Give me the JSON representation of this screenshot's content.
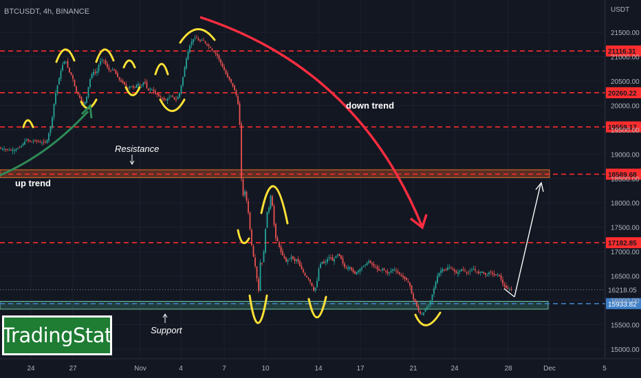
{
  "header": {
    "symbol": "BTCUSDT, 4h, BINANCE",
    "currency": "USDT"
  },
  "logo": {
    "text": "TradingStat"
  },
  "chart_data": {
    "type": "candlestick",
    "y_axis": {
      "min": 15000,
      "max": 21700,
      "ticks": [
        15000,
        15500,
        16000,
        16500,
        17000,
        17500,
        18000,
        18500,
        19000,
        19500,
        20000,
        20500,
        21000,
        21500
      ],
      "tick_labels": [
        "15000.00",
        "15500.00",
        "16000.00",
        "16500.00",
        "17000.00",
        "17500.00",
        "18000.00",
        "18500.00",
        "19000.00",
        "19500.00",
        "20000.00",
        "20500.00",
        "21000.00",
        "21500.00"
      ]
    },
    "x_axis": {
      "labels": [
        "24",
        "27",
        "Nov",
        "4",
        "7",
        "10",
        "14",
        "17",
        "21",
        "24",
        "28",
        "Dec",
        "5"
      ]
    },
    "horizontal_levels": [
      {
        "price": 21116.31,
        "label": "21116.31",
        "color": "#ff2d2d"
      },
      {
        "price": 20260.22,
        "label": "20260.22",
        "color": "#ff2d2d"
      },
      {
        "price": 19559.17,
        "label": "19559.17",
        "color": "#ff2d2d"
      },
      {
        "price": 18589.68,
        "label": "18589.68",
        "color": "#ff2d2d"
      },
      {
        "price": 17182.85,
        "label": "17182.85",
        "color": "#ff2d2d"
      },
      {
        "price": 15933.82,
        "label": "15933.82",
        "color": "#3f80c8"
      }
    ],
    "last_price": {
      "price": 16218.05,
      "label": "16218.05"
    },
    "zones": [
      {
        "name": "resistance",
        "top": 18680,
        "bottom": 18520,
        "fill": "rgba(224,90,40,0.35)",
        "stroke": "#e0702a"
      },
      {
        "name": "support",
        "top": 15980,
        "bottom": 15820,
        "fill": "rgba(80,170,140,0.25)",
        "stroke": "#6fc3a8"
      }
    ],
    "annotations": {
      "up_trend": "up trend",
      "down_trend": "down trend",
      "resistance": "Resistance",
      "support": "Support"
    },
    "close_path": [
      [
        0,
        19120
      ],
      [
        8,
        19100
      ],
      [
        15,
        19080
      ],
      [
        22,
        19090
      ],
      [
        30,
        19150
      ],
      [
        38,
        19300
      ],
      [
        45,
        19250
      ],
      [
        52,
        19280
      ],
      [
        60,
        19230
      ],
      [
        68,
        19260
      ],
      [
        75,
        19650
      ],
      [
        80,
        20200
      ],
      [
        85,
        20500
      ],
      [
        90,
        20800
      ],
      [
        95,
        20950
      ],
      [
        100,
        20700
      ],
      [
        105,
        20600
      ],
      [
        110,
        20300
      ],
      [
        115,
        20200
      ],
      [
        120,
        20000
      ],
      [
        125,
        20100
      ],
      [
        130,
        20500
      ],
      [
        135,
        20700
      ],
      [
        140,
        20650
      ],
      [
        145,
        20900
      ],
      [
        150,
        20950
      ],
      [
        155,
        20800
      ],
      [
        160,
        20700
      ],
      [
        165,
        20750
      ],
      [
        170,
        20600
      ],
      [
        175,
        20500
      ],
      [
        180,
        20450
      ],
      [
        185,
        20350
      ],
      [
        190,
        20400
      ],
      [
        195,
        20350
      ],
      [
        200,
        20450
      ],
      [
        205,
        20400
      ],
      [
        210,
        20500
      ],
      [
        215,
        20300
      ],
      [
        220,
        20350
      ],
      [
        225,
        20250
      ],
      [
        230,
        20200
      ],
      [
        235,
        20150
      ],
      [
        240,
        20100
      ],
      [
        245,
        20150
      ],
      [
        250,
        20200
      ],
      [
        255,
        20100
      ],
      [
        260,
        20200
      ],
      [
        265,
        20500
      ],
      [
        270,
        20900
      ],
      [
        275,
        21200
      ],
      [
        280,
        21350
      ],
      [
        285,
        21400
      ],
      [
        290,
        21300
      ],
      [
        295,
        21350
      ],
      [
        300,
        21250
      ],
      [
        305,
        21200
      ],
      [
        310,
        21100
      ],
      [
        315,
        21050
      ],
      [
        320,
        20900
      ],
      [
        325,
        20750
      ],
      [
        330,
        20600
      ],
      [
        335,
        20500
      ],
      [
        340,
        20350
      ],
      [
        345,
        20150
      ],
      [
        348,
        19800
      ],
      [
        350,
        19000
      ],
      [
        352,
        18000
      ],
      [
        355,
        18300
      ],
      [
        358,
        18100
      ],
      [
        361,
        17800
      ],
      [
        364,
        17400
      ],
      [
        367,
        17000
      ],
      [
        370,
        16800
      ],
      [
        373,
        16500
      ],
      [
        376,
        16200
      ],
      [
        379,
        16900
      ],
      [
        382,
        16700
      ],
      [
        385,
        17300
      ],
      [
        388,
        17800
      ],
      [
        391,
        17900
      ],
      [
        394,
        18200
      ],
      [
        397,
        17800
      ],
      [
        400,
        17300
      ],
      [
        404,
        17200
      ],
      [
        408,
        17000
      ],
      [
        412,
        16900
      ],
      [
        416,
        16800
      ],
      [
        420,
        16850
      ],
      [
        424,
        16900
      ],
      [
        428,
        16800
      ],
      [
        432,
        16850
      ],
      [
        436,
        16700
      ],
      [
        440,
        16600
      ],
      [
        444,
        16500
      ],
      [
        448,
        16450
      ],
      [
        452,
        16350
      ],
      [
        456,
        16200
      ],
      [
        460,
        16300
      ],
      [
        464,
        16700
      ],
      [
        468,
        16800
      ],
      [
        472,
        16750
      ],
      [
        476,
        16850
      ],
      [
        480,
        16900
      ],
      [
        484,
        16800
      ],
      [
        488,
        16900
      ],
      [
        492,
        16950
      ],
      [
        496,
        16850
      ],
      [
        500,
        16700
      ],
      [
        504,
        16650
      ],
      [
        508,
        16700
      ],
      [
        512,
        16600
      ],
      [
        516,
        16550
      ],
      [
        520,
        16600
      ],
      [
        524,
        16650
      ],
      [
        528,
        16700
      ],
      [
        532,
        16750
      ],
      [
        536,
        16800
      ],
      [
        540,
        16750
      ],
      [
        544,
        16700
      ],
      [
        548,
        16650
      ],
      [
        552,
        16600
      ],
      [
        556,
        16650
      ],
      [
        560,
        16600
      ],
      [
        564,
        16550
      ],
      [
        568,
        16600
      ],
      [
        572,
        16650
      ],
      [
        576,
        16600
      ],
      [
        580,
        16550
      ],
      [
        584,
        16500
      ],
      [
        588,
        16450
      ],
      [
        592,
        16400
      ],
      [
        596,
        16300
      ],
      [
        600,
        16050
      ],
      [
        604,
        15950
      ],
      [
        608,
        15800
      ],
      [
        612,
        15700
      ],
      [
        616,
        15750
      ],
      [
        620,
        15850
      ],
      [
        624,
        15900
      ],
      [
        628,
        16100
      ],
      [
        632,
        16300
      ],
      [
        636,
        16500
      ],
      [
        640,
        16600
      ],
      [
        644,
        16650
      ],
      [
        648,
        16600
      ],
      [
        652,
        16700
      ],
      [
        656,
        16650
      ],
      [
        660,
        16600
      ],
      [
        664,
        16550
      ],
      [
        668,
        16600
      ],
      [
        672,
        16650
      ],
      [
        676,
        16600
      ],
      [
        680,
        16550
      ],
      [
        684,
        16600
      ],
      [
        688,
        16650
      ],
      [
        692,
        16600
      ],
      [
        696,
        16550
      ],
      [
        700,
        16600
      ],
      [
        704,
        16550
      ],
      [
        708,
        16500
      ],
      [
        712,
        16600
      ],
      [
        716,
        16550
      ],
      [
        720,
        16500
      ],
      [
        724,
        16550
      ],
      [
        728,
        16450
      ],
      [
        732,
        16300
      ],
      [
        736,
        16250
      ],
      [
        740,
        16230
      ],
      [
        744,
        16218
      ]
    ]
  }
}
